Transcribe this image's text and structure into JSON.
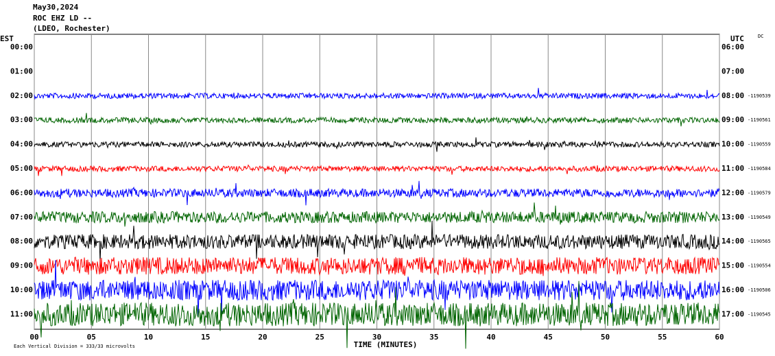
{
  "chart_data": {
    "type": "helicorder",
    "title": [
      "May30,2024",
      "ROC EHZ LD --",
      "(LDEO, Rochester)"
    ],
    "left_axis_label": "EST",
    "right_axis_label": "UTC",
    "corner_note": "DC",
    "xlabel": "TIME (MINUTES)",
    "footer": "Each Vertical Division = 333/33 microvolts",
    "xlim": [
      0,
      60
    ],
    "xticks": [
      {
        "value": 0,
        "label": "00"
      },
      {
        "value": 5,
        "label": "05"
      },
      10,
      15,
      20,
      25,
      30,
      35,
      40,
      45,
      50,
      55,
      60
    ],
    "grid": true,
    "rows": [
      {
        "est": "00:00",
        "utc": "06:00"
      },
      {
        "est": "01:00",
        "utc": "07:00"
      },
      {
        "est": "02:00",
        "utc": "08:00",
        "id": "-1190539",
        "color": "#0000ff"
      },
      {
        "est": "03:00",
        "utc": "09:00",
        "id": "-1190561",
        "color": "#006400"
      },
      {
        "est": "04:00",
        "utc": "10:00",
        "id": "-1190559",
        "color": "#000000"
      },
      {
        "est": "05:00",
        "utc": "11:00",
        "id": "-1190584",
        "color": "#ff0000"
      },
      {
        "est": "06:00",
        "utc": "12:00",
        "id": "-1190579",
        "color": "#0000ff"
      },
      {
        "est": "07:00",
        "utc": "13:00",
        "id": "-1190549",
        "color": "#006400"
      },
      {
        "est": "08:00",
        "utc": "14:00",
        "id": "-1190565",
        "color": "#000000"
      },
      {
        "est": "09:00",
        "utc": "15:00",
        "id": "-1190554",
        "color": "#ff0000"
      },
      {
        "est": "10:00",
        "utc": "16:00",
        "id": "-1190506",
        "color": "#0000ff"
      },
      {
        "est": "11:00",
        "utc": "17:00",
        "id": "-1190545",
        "color": "#006400"
      }
    ]
  }
}
